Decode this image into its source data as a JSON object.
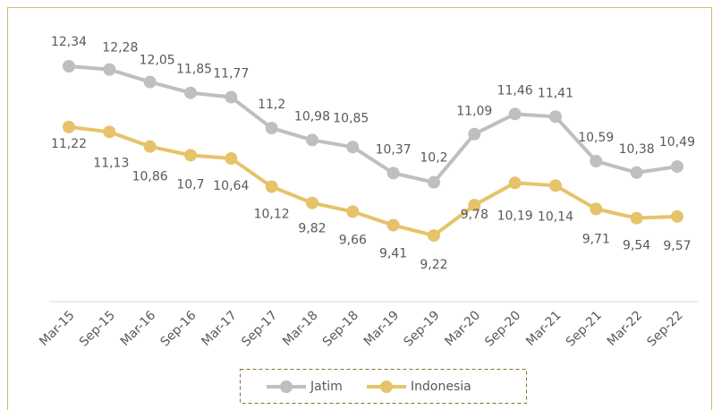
{
  "chart_data": {
    "type": "line",
    "categories": [
      "Mar-15",
      "Sep-15",
      "Mar-16",
      "Sep-16",
      "Mar-17",
      "Sep-17",
      "Mar-18",
      "Sep-18",
      "Mar-19",
      "Sep-19",
      "Mar-20",
      "Sep-20",
      "Mar-21",
      "Sep-21",
      "Mar-22",
      "Sep-22"
    ],
    "series": [
      {
        "name": "Jatim",
        "color": "#bfbfbf",
        "values": [
          12.34,
          12.28,
          12.05,
          11.85,
          11.77,
          11.2,
          10.98,
          10.85,
          10.37,
          10.2,
          11.09,
          11.46,
          11.41,
          10.59,
          10.38,
          10.49
        ],
        "value_labels": [
          "12,34",
          "12,28",
          "12,05",
          "11,85",
          "11,77",
          "11,2",
          "10,98",
          "10,85",
          "10,37",
          "10,2",
          "11,09",
          "11,46",
          "11,41",
          "10,59",
          "10,38",
          "10,49"
        ]
      },
      {
        "name": "Indonesia",
        "color": "#e6c36a",
        "values": [
          11.22,
          11.13,
          10.86,
          10.7,
          10.64,
          10.12,
          9.82,
          9.66,
          9.41,
          9.22,
          9.78,
          10.19,
          10.14,
          9.71,
          9.54,
          9.57
        ],
        "value_labels": [
          "11,22",
          "11,13",
          "10,86",
          "10,7",
          "10,64",
          "10,12",
          "9,82",
          "9,66",
          "9,41",
          "9,22",
          "9,78",
          "10,19",
          "10,14",
          "9,71",
          "9,54",
          "9,57"
        ]
      }
    ],
    "ylim": [
      8,
      13
    ],
    "legend": "bottom"
  }
}
